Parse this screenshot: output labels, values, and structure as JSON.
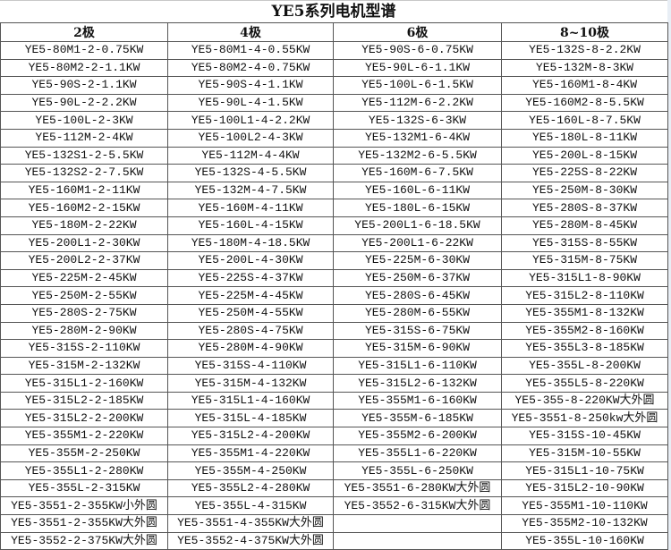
{
  "title": "YE5系列电机型谱",
  "columns": [
    "2极",
    "4极",
    "6极",
    "8~10极"
  ],
  "rows": [
    [
      "YE5-80M1-2-0.75KW",
      "YE5-80M1-4-0.55KW",
      "YE5-90S-6-0.75KW",
      "YE5-132S-8-2.2KW"
    ],
    [
      "YE5-80M2-2-1.1KW",
      "YE5-80M2-4-0.75KW",
      "YE5-90L-6-1.1KW",
      "YE5-132M-8-3KW"
    ],
    [
      "YE5-90S-2-1.1KW",
      "YE5-90S-4-1.1KW",
      "YE5-100L-6-1.5KW",
      "YE5-160M1-8-4KW"
    ],
    [
      "YE5-90L-2-2.2KW",
      "YE5-90L-4-1.5KW",
      "YE5-112M-6-2.2KW",
      "YE5-160M2-8-5.5KW"
    ],
    [
      "YE5-100L-2-3KW",
      "YE5-100L1-4-2.2KW",
      "YE5-132S-6-3KW",
      "YE5-160L-8-7.5KW"
    ],
    [
      "YE5-112M-2-4KW",
      "YE5-100L2-4-3KW",
      "YE5-132M1-6-4KW",
      "YE5-180L-8-11KW"
    ],
    [
      "YE5-132S1-2-5.5KW",
      "YE5-112M-4-4KW",
      "YE5-132M2-6-5.5KW",
      "YE5-200L-8-15KW"
    ],
    [
      "YE5-132S2-2-7.5KW",
      "YE5-132S-4-5.5KW",
      "YE5-160M-6-7.5KW",
      "YE5-225S-8-22KW"
    ],
    [
      "YE5-160M1-2-11KW",
      "YE5-132M-4-7.5KW",
      "YE5-160L-6-11KW",
      "YE5-250M-8-30KW"
    ],
    [
      "YE5-160M2-2-15KW",
      "YE5-160M-4-11KW",
      "YE5-180L-6-15KW",
      "YE5-280S-8-37KW"
    ],
    [
      "YE5-180M-2-22KW",
      "YE5-160L-4-15KW",
      "YE5-200L1-6-18.5KW",
      "YE5-280M-8-45KW"
    ],
    [
      "YE5-200L1-2-30KW",
      "YE5-180M-4-18.5KW",
      "YE5-200L1-6-22KW",
      "YE5-315S-8-55KW"
    ],
    [
      "YE5-200L2-2-37KW",
      "YE5-200L-4-30KW",
      "YE5-225M-6-30KW",
      "YE5-315M-8-75KW"
    ],
    [
      "YE5-225M-2-45KW",
      "YE5-225S-4-37KW",
      "YE5-250M-6-37KW",
      "YE5-315L1-8-90KW"
    ],
    [
      "YE5-250M-2-55KW",
      "YE5-225M-4-45KW",
      "YE5-280S-6-45KW",
      "YE5-315L2-8-110KW"
    ],
    [
      "YE5-280S-2-75KW",
      "YE5-250M-4-55KW",
      "YE5-280M-6-55KW",
      "YE5-355M1-8-132KW"
    ],
    [
      "YE5-280M-2-90KW",
      "YE5-280S-4-75KW",
      "YE5-315S-6-75KW",
      "YE5-355M2-8-160KW"
    ],
    [
      "YE5-315S-2-110KW",
      "YE5-280M-4-90KW",
      "YE5-315M-6-90KW",
      "YE5-355L3-8-185KW"
    ],
    [
      "YE5-315M-2-132KW",
      "YE5-315S-4-110KW",
      "YE5-315L1-6-110KW",
      "YE5-355L-8-200KW"
    ],
    [
      "YE5-315L1-2-160KW",
      "YE5-315M-4-132KW",
      "YE5-315L2-6-132KW",
      "YE5-355L5-8-220KW"
    ],
    [
      "YE5-315L2-2-185KW",
      "YE5-315L1-4-160KW",
      "YE5-355M1-6-160KW",
      "YE5-355-8-220KW大外圆"
    ],
    [
      "YE5-315L2-2-200KW",
      "YE5-315L-4-185KW",
      "YE5-355M-6-185KW",
      "YE5-3551-8-250kw大外圆"
    ],
    [
      "YE5-355M1-2-220KW",
      "YE5-315L2-4-200KW",
      "YE5-355M2-6-200KW",
      "YE5-315S-10-45KW"
    ],
    [
      "YE5-355M-2-250KW",
      "YE5-355M1-4-220KW",
      "YE5-355L1-6-220KW",
      "YE5-315M-10-55KW"
    ],
    [
      "YE5-355L1-2-280KW",
      "YE5-355M-4-250KW",
      "YE5-355L-6-250KW",
      "YE5-315L1-10-75KW"
    ],
    [
      "YE5-355L-2-315KW",
      "YE5-355L2-4-280KW",
      "YE5-3551-6-280KW大外圆",
      "YE5-315L2-10-90KW"
    ],
    [
      "YE5-3551-2-355KW小外圆",
      "YE5-355L-4-315KW",
      "YE5-3552-6-315KW大外圆",
      "YE5-355M1-10-110KW"
    ],
    [
      "YE5-3551-2-355KW大外圆",
      "YE5-3551-4-355KW大外圆",
      "",
      "YE5-355M2-10-132KW"
    ],
    [
      "YE5-3552-2-375KW大外圆",
      "YE5-3552-4-375KW大外圆",
      "",
      "YE5-355L-10-160KW"
    ]
  ]
}
